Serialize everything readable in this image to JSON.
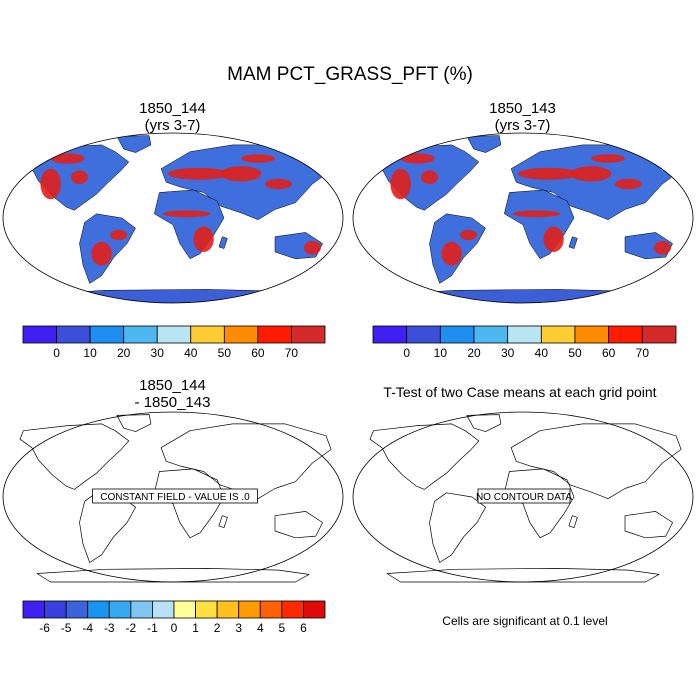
{
  "figure": {
    "title": "MAM PCT_GRASS_PFT (%)",
    "panel_titles": {
      "top_left_line1": "1850_144",
      "top_left_line2": "(yrs 3-7)",
      "top_right_line1": "1850_143",
      "top_right_line2": "(yrs 3-7)",
      "bottom_left_line1": "1850_144",
      "bottom_left_line2": "- 1850_143",
      "bottom_right": "T-Test of two Case means at each grid point"
    },
    "map_labels": {
      "diff": "CONSTANT FIELD - VALUE IS .0",
      "ttest": "NO CONTOUR DATA"
    },
    "significance_note": "Cells are significant at 0.1 level"
  },
  "colors": {
    "abs_scale": [
      "#3f1ff2",
      "#3c4fd8",
      "#1e8ff0",
      "#4db8f0",
      "#b8e4f4",
      "#ffcc33",
      "#ff8c00",
      "#ff1c00",
      "#d42a2a"
    ],
    "diff_scale": [
      "#3f1ff2",
      "#3a3fe0",
      "#3c62dc",
      "#1694f0",
      "#35aaf2",
      "#7ec6f0",
      "#b8e0f6",
      "#ffff99",
      "#ffe040",
      "#ffc020",
      "#ff9a00",
      "#ff6000",
      "#ff2a00",
      "#e00a0a",
      "#d42a2a"
    ],
    "land_mid": "#3f6fdc",
    "land_high": "#e0201a",
    "antarctica": "#3c5fd8"
  },
  "chart_data": [
    {
      "type": "heatmap",
      "title": "1850_144 (yrs 3-7)",
      "colorbar_ticks": [
        "0",
        "10",
        "20",
        "30",
        "40",
        "50",
        "60",
        "70"
      ],
      "colorbar_bins": 9,
      "units": "%"
    },
    {
      "type": "heatmap",
      "title": "1850_143 (yrs 3-7)",
      "colorbar_ticks": [
        "0",
        "10",
        "20",
        "30",
        "40",
        "50",
        "60",
        "70"
      ],
      "colorbar_bins": 9,
      "units": "%"
    },
    {
      "type": "heatmap",
      "title": "1850_144 - 1850_143",
      "colorbar_ticks": [
        "-6",
        "-5",
        "-4",
        "-3",
        "-2",
        "-1",
        "0",
        "1",
        "2",
        "3",
        "4",
        "5",
        "6"
      ],
      "colorbar_bins": 14,
      "constant_value": 0
    },
    {
      "type": "heatmap",
      "title": "T-Test of two Case means at each grid point",
      "significance_level": 0.1
    }
  ]
}
